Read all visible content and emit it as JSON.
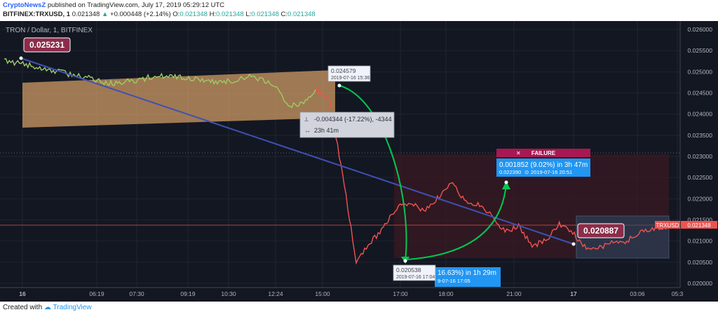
{
  "header": {
    "publisher": "CryptoNewsZ",
    "published_text": "published on TradingView.com, July 17, 2019 05:29:12 UTC",
    "symbol": "BITFINEX:TRXUSD, 1",
    "last": "0.021348",
    "change": "+0.000448 (+2.14%)",
    "o_label": "O:",
    "o": "0.021348",
    "h_label": "H:",
    "h": "0.021348",
    "l_label": "L:",
    "l": "0.021348",
    "c_label": "C:",
    "c": "0.021348"
  },
  "legend": {
    "title": "TRON / Dollar, 1, BITFINEX"
  },
  "footer": {
    "created_with": "Created with",
    "brand": "TradingView"
  },
  "colors": {
    "background": "#131722",
    "line_before": "#9ccc65",
    "line_after": "#ef5350",
    "trendline": "#3f51b5",
    "channel": "#ffcc80",
    "arrow": "#00c853",
    "label_bg": "#8b2d4a",
    "info_blue": "#2196f3"
  },
  "annotations": {
    "start_price": "0.025231",
    "end_price": "0.020887",
    "high_label": {
      "price": "0.024579",
      "time": "2019-07-16 15:36"
    },
    "low_label": {
      "price": "0.020538",
      "time": "2019-07-16 17:04"
    },
    "drop_measure": {
      "change": "-0.004344 (-17.22%), -4344",
      "duration": "23h 41m"
    },
    "rise_measure": {
      "change": "16.63%) in 1h 29m",
      "time": "9-07-16  17:05"
    },
    "target_measure": {
      "change": "0.001852 (9.02%) in 3h 47m",
      "price": "0.022390",
      "time": "2019-07-16  20:51"
    },
    "failure": "FAILURE",
    "price_tag": {
      "symbol": "TRXUSD",
      "price": "0.021348"
    }
  },
  "chart_data": {
    "type": "line",
    "series": [
      {
        "name": "TRXUSD",
        "x": [
          "04:00",
          "04:30",
          "05:00",
          "05:30",
          "06:00",
          "06:30",
          "07:00",
          "07:30",
          "08:00",
          "08:30",
          "09:00",
          "09:30",
          "10:00",
          "10:30",
          "11:00",
          "11:30",
          "12:00",
          "12:30",
          "13:00",
          "13:30",
          "14:00",
          "14:30",
          "15:00",
          "15:36",
          "16:00",
          "16:30",
          "17:04",
          "17:30",
          "18:00",
          "18:30",
          "19:00",
          "19:30",
          "20:00",
          "20:51",
          "21:30",
          "22:00",
          "22:30",
          "23:00",
          "23:30",
          "00:00",
          "00:30",
          "01:00",
          "01:30",
          "02:00",
          "02:30",
          "03:00",
          "03:30",
          "04:00",
          "04:30",
          "05:29"
        ],
        "values": [
          0.02528,
          0.0252,
          0.02515,
          0.02508,
          0.025,
          0.02492,
          0.02488,
          0.02478,
          0.02472,
          0.02478,
          0.0248,
          0.0249,
          0.0249,
          0.02488,
          0.02484,
          0.0248,
          0.02475,
          0.0248,
          0.02488,
          0.02482,
          0.0247,
          0.0242,
          0.02425,
          0.02458,
          0.0244,
          0.02255,
          0.02054,
          0.02095,
          0.0213,
          0.0218,
          0.0219,
          0.0217,
          0.022,
          0.02239,
          0.02195,
          0.02185,
          0.02165,
          0.0212,
          0.02135,
          0.02089,
          0.021,
          0.0214,
          0.0212,
          0.0208,
          0.02085,
          0.021,
          0.021,
          0.0212,
          0.0213,
          0.021348
        ]
      }
    ],
    "x_tick_labels": [
      "16",
      "06:19",
      "07:30",
      "09:19",
      "10:30",
      "12:24",
      "15:00",
      "17:00",
      "18:00",
      "21:00",
      "17",
      "03:06",
      "05:3"
    ],
    "y_tick_labels": [
      "0.026000",
      "0.025500",
      "0.025000",
      "0.024500",
      "0.024000",
      "0.023500",
      "0.023000",
      "0.022500",
      "0.022000",
      "0.021500",
      "0.021000",
      "0.020500",
      "0.020000"
    ],
    "ylim": [
      0.0199,
      0.0262
    ],
    "grid": true
  }
}
